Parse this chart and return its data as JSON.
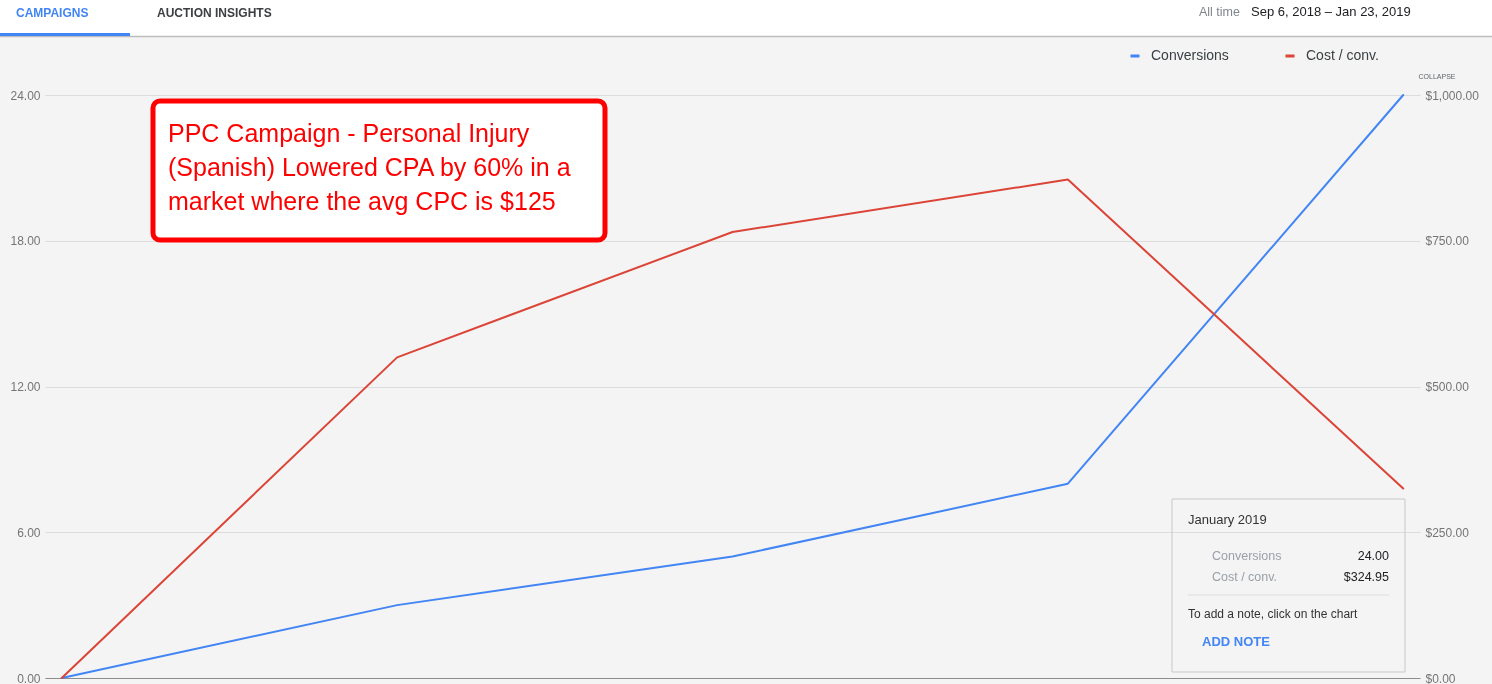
{
  "chart_data": {
    "type": "line",
    "title": "PPC Campaign - Personal Injury (Spanish) Lowered CPA by 60% in a market where the avg CPC is $125",
    "categories": [
      null,
      null,
      null,
      null,
      null
    ],
    "series": [
      {
        "name": "Conversions",
        "color": "#4285f4",
        "values": [
          0,
          3,
          5,
          8,
          24
        ]
      },
      {
        "name": "Cost / conv.",
        "color": "#db4437",
        "values": [
          0,
          550,
          765,
          855,
          324.95
        ],
        "axis": "y2"
      }
    ],
    "ylim": [
      0,
      24
    ],
    "yticks": [
      {
        "value": 0,
        "label": "0.00"
      },
      {
        "value": 6,
        "label": "6.00"
      },
      {
        "value": 12,
        "label": "12.00"
      },
      {
        "value": 18,
        "label": "18.00"
      },
      {
        "value": 24,
        "label": "24.00"
      }
    ],
    "y2lim": [
      0,
      1000
    ],
    "y2ticks": [
      {
        "value": 0,
        "label": "$0.00"
      },
      {
        "value": 250,
        "label": "$250.00"
      },
      {
        "value": 500,
        "label": "$500.00"
      },
      {
        "value": 750,
        "label": "$750.00"
      },
      {
        "value": 1000,
        "label": "$1,000.00"
      }
    ],
    "grid": "y",
    "legend": "top right",
    "annotations": [
      "CAMPAIGNS",
      "AUCTION INSIGHTS",
      "All time",
      "Sep 6, 2018 – Jan 23, 2019",
      "COLLAPSE",
      "January 2019",
      "24.00",
      "$324.95",
      "To add a note, click on the chart",
      "ADD NOTE"
    ]
  }
}
